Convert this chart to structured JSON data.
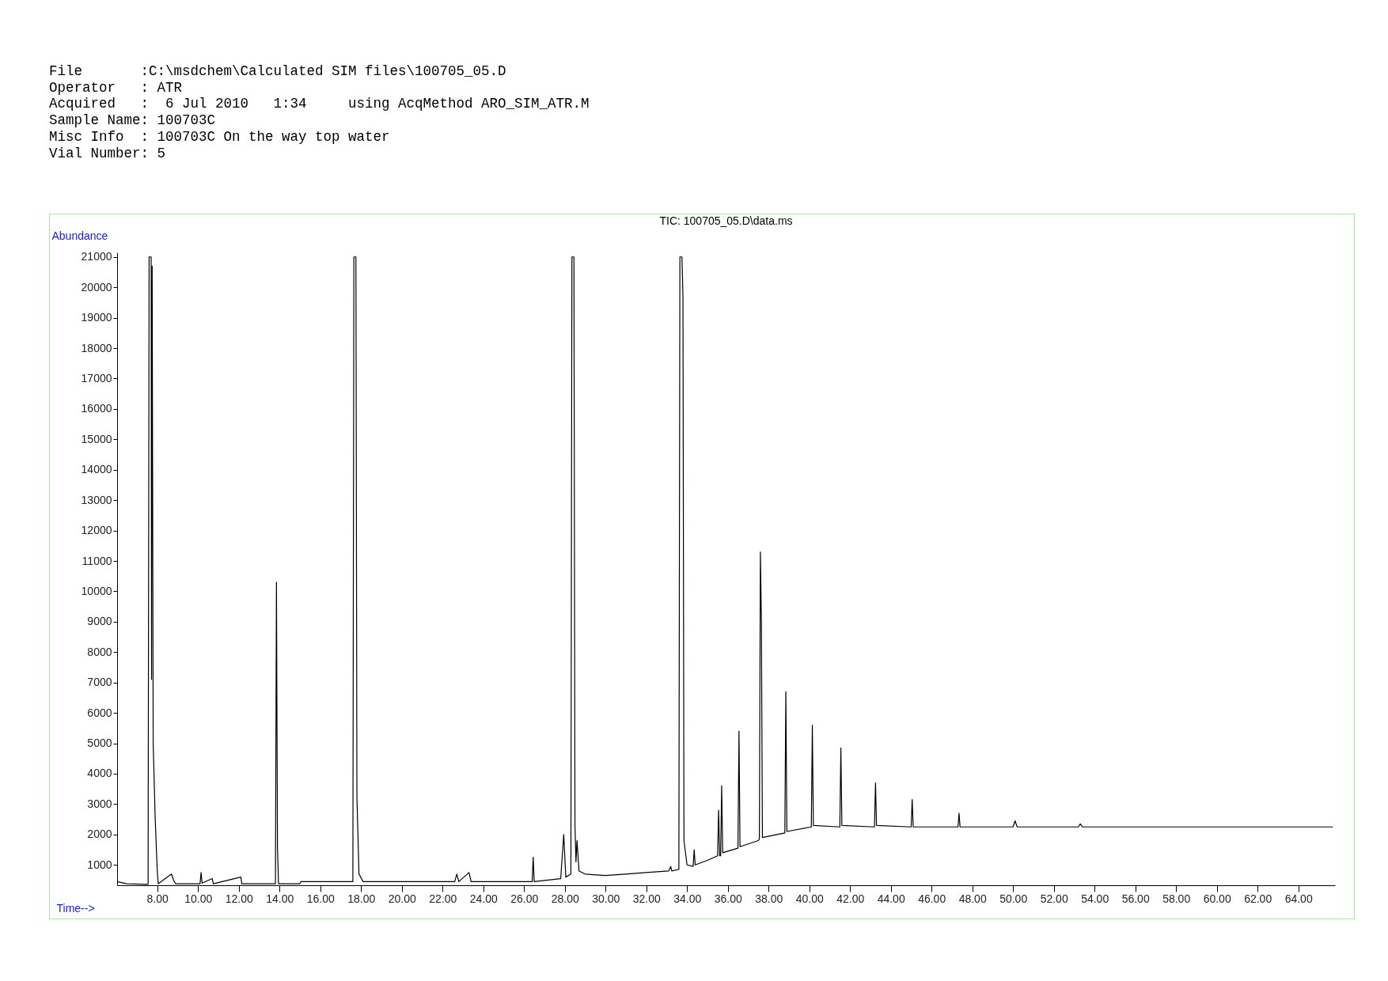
{
  "chart_data": {
    "type": "line",
    "title": "TIC: 100705_05.D\\data.ms",
    "xlabel": "Time-->",
    "ylabel": "Abundance",
    "annotations": [
      "File       :C:\\msdchem\\Calculated SIM files\\100705_05.D",
      "Operator   : ATR",
      "Acquired   :  6 Jul 2010   1:34     using AcqMethod ARO_SIM_ATR.M",
      "Sample Name: 100703C",
      "Misc Info  : 100703C On the way top water",
      "Vial Number: 5"
    ],
    "x": [
      6.03,
      6.5,
      7.55,
      7.6,
      7.7,
      7.72,
      7.75,
      7.8,
      7.9,
      8.0,
      8.05,
      8.7,
      8.8,
      8.9,
      10.1,
      10.15,
      10.2,
      10.7,
      10.75,
      12.1,
      12.15,
      13.8,
      13.85,
      13.9,
      13.95,
      15.0,
      15.05,
      17.6,
      17.65,
      17.75,
      17.8,
      17.9,
      18.1,
      20.0,
      22.6,
      22.7,
      22.8,
      23.3,
      23.4,
      26.4,
      26.45,
      26.5,
      27.8,
      27.95,
      28.05,
      28.3,
      28.35,
      28.45,
      28.5,
      28.55,
      28.6,
      28.7,
      29.0,
      30.0,
      31.0,
      32.0,
      33.1,
      33.2,
      33.25,
      33.6,
      33.65,
      33.75,
      33.8,
      33.85,
      34.0,
      34.3,
      34.35,
      34.4,
      35.0,
      35.5,
      35.55,
      35.6,
      35.65,
      35.7,
      35.75,
      36.5,
      36.55,
      36.6,
      37.5,
      37.55,
      37.6,
      37.65,
      37.7,
      38.8,
      38.85,
      38.9,
      40.1,
      40.15,
      40.2,
      41.5,
      41.55,
      41.6,
      43.2,
      43.25,
      43.3,
      45.0,
      45.05,
      45.1,
      47.3,
      47.35,
      47.4,
      50.0,
      50.1,
      50.2,
      53.2,
      53.3,
      53.4,
      65.7
    ],
    "series": [
      {
        "color": "#000000",
        "values": [
          450,
          380,
          360,
          21000,
          21000,
          7100,
          20700,
          5000,
          2500,
          800,
          380,
          700,
          500,
          380,
          380,
          750,
          400,
          550,
          380,
          600,
          380,
          380,
          10300,
          1600,
          380,
          380,
          450,
          450,
          21000,
          21000,
          3200,
          700,
          450,
          450,
          450,
          700,
          450,
          750,
          450,
          450,
          1250,
          450,
          550,
          2000,
          600,
          700,
          21000,
          21000,
          2300,
          1100,
          1800,
          800,
          700,
          650,
          700,
          750,
          800,
          950,
          800,
          850,
          21000,
          21000,
          19700,
          1800,
          1000,
          950,
          1500,
          1000,
          1150,
          1300,
          2800,
          1300,
          1300,
          3600,
          1400,
          1550,
          5400,
          1600,
          1800,
          1850,
          11300,
          9000,
          1900,
          2050,
          6700,
          2100,
          2250,
          5600,
          2300,
          2250,
          4850,
          2300,
          2250,
          3700,
          2300,
          2250,
          3150,
          2250,
          2250,
          2700,
          2250,
          2250,
          2450,
          2250,
          2250,
          2350,
          2250,
          2250
        ]
      }
    ],
    "xlim": [
      6.03,
      65.8
    ],
    "ylim": [
      330,
      21150
    ],
    "xticks": [
      {
        "value": 8,
        "label": "8.00"
      },
      {
        "value": 10,
        "label": "10.00"
      },
      {
        "value": 12,
        "label": "12.00"
      },
      {
        "value": 14,
        "label": "14.00"
      },
      {
        "value": 16,
        "label": "16.00"
      },
      {
        "value": 18,
        "label": "18.00"
      },
      {
        "value": 20,
        "label": "20.00"
      },
      {
        "value": 22,
        "label": "22.00"
      },
      {
        "value": 24,
        "label": "24.00"
      },
      {
        "value": 26,
        "label": "26.00"
      },
      {
        "value": 28,
        "label": "28.00"
      },
      {
        "value": 30,
        "label": "30.00"
      },
      {
        "value": 32,
        "label": "32.00"
      },
      {
        "value": 34,
        "label": "34.00"
      },
      {
        "value": 36,
        "label": "36.00"
      },
      {
        "value": 38,
        "label": "38.00"
      },
      {
        "value": 40,
        "label": "40.00"
      },
      {
        "value": 42,
        "label": "42.00"
      },
      {
        "value": 44,
        "label": "44.00"
      },
      {
        "value": 46,
        "label": "46.00"
      },
      {
        "value": 48,
        "label": "48.00"
      },
      {
        "value": 50,
        "label": "50.00"
      },
      {
        "value": 52,
        "label": "52.00"
      },
      {
        "value": 54,
        "label": "54.00"
      },
      {
        "value": 56,
        "label": "56.00"
      },
      {
        "value": 58,
        "label": "58.00"
      },
      {
        "value": 60,
        "label": "60.00"
      },
      {
        "value": 62,
        "label": "62.00"
      },
      {
        "value": 64,
        "label": "64.00"
      }
    ],
    "yticks": [
      1000,
      2000,
      3000,
      4000,
      5000,
      6000,
      7000,
      8000,
      9000,
      10000,
      11000,
      12000,
      13000,
      14000,
      15000,
      16000,
      17000,
      18000,
      19000,
      20000,
      21000
    ],
    "grid": false,
    "marker": "none",
    "line_style": "solid"
  }
}
